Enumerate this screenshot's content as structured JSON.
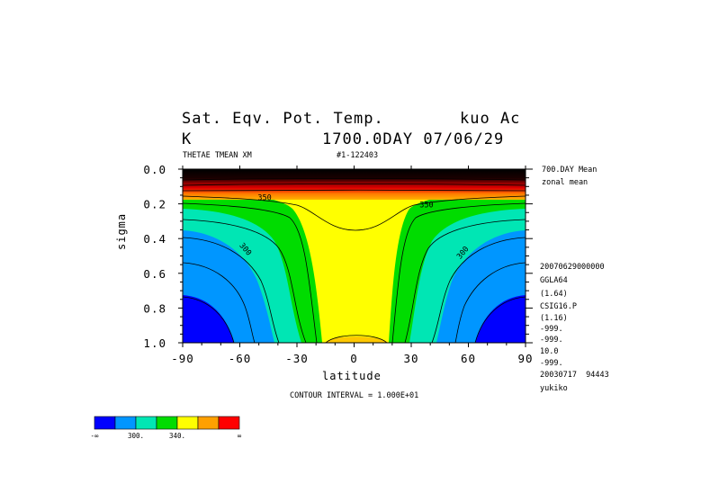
{
  "header": {
    "title_left": "Sat. Eqv. Pot. Temp.",
    "title_right": "kuo Ac",
    "units": "K",
    "time": "1700.0DAY 07/06/29",
    "var_name": "THETAE TMEAN XM",
    "run_id": "#1-122403"
  },
  "side_info": {
    "avg1": "700.DAY Mean",
    "avg2": "zonal mean",
    "lines": [
      "20070629000000",
      "GGLA64",
      "(1.64)",
      "CSIG16.P",
      "(1.16)",
      "-999.",
      "-999.",
      "10.0",
      "-999.",
      "20030717  94443",
      "yukiko"
    ]
  },
  "contour_interval": "CONTOUR INTERVAL = 1.000E+01",
  "chart_data": {
    "type": "heatmap",
    "title": "Sat. Eqv. Pot. Temp.",
    "xlabel": "latitude",
    "ylabel": "sigma",
    "xlim": [
      -90,
      90
    ],
    "ylim": [
      1.0,
      0.0
    ],
    "x_ticks": [
      -90,
      -60,
      -30,
      0,
      30,
      60,
      90
    ],
    "x_tick_labels": [
      "-90",
      "-60",
      "-30",
      "0",
      "30",
      "60",
      "90"
    ],
    "y_ticks": [
      0.0,
      0.2,
      0.4,
      0.6,
      0.8,
      1.0
    ],
    "y_tick_labels": [
      "0.0",
      "0.2",
      "0.4",
      "0.6",
      "0.8",
      "1.0"
    ],
    "contour_labels": [
      {
        "text": "350",
        "lat": -47,
        "sigma": 0.18
      },
      {
        "text": "350",
        "lat": 38,
        "sigma": 0.22
      },
      {
        "text": "300",
        "lat": -58,
        "sigma": 0.47
      },
      {
        "text": "300",
        "lat": 58,
        "sigma": 0.49
      }
    ],
    "colorbar": {
      "colors": [
        "#0000ff",
        "#0096ff",
        "#00e6b4",
        "#00dc00",
        "#ffff00",
        "#ffa000",
        "#ff0000"
      ],
      "labels": [
        "-∞",
        "300.",
        "340.",
        "∞"
      ]
    }
  }
}
